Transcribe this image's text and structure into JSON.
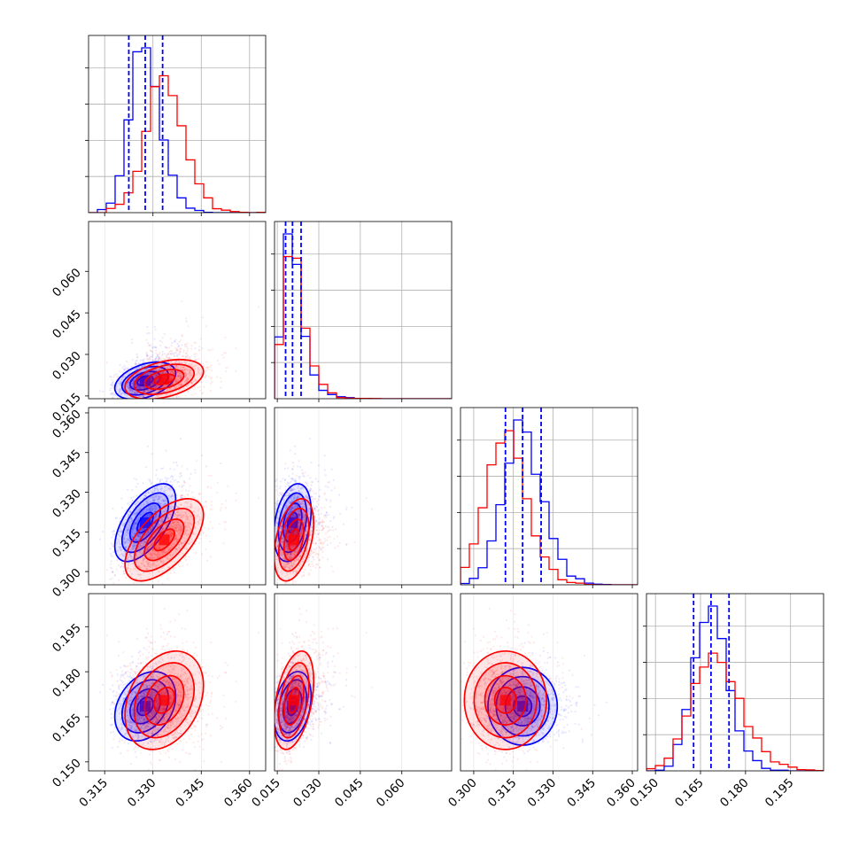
{
  "chart_data": {
    "type": "corner",
    "parameters": [
      {
        "range": [
          0.31,
          0.365
        ],
        "ticks": [
          "0.315",
          "0.330",
          "0.345",
          "0.360"
        ],
        "tick_values": [
          0.315,
          0.33,
          0.345,
          0.36
        ]
      },
      {
        "range": [
          0.014,
          0.078
        ],
        "ticks": [
          "0.015",
          "0.030",
          "0.045",
          "0.060"
        ],
        "tick_values": [
          0.015,
          0.03,
          0.045,
          0.06
        ]
      },
      {
        "range": [
          0.295,
          0.362
        ],
        "ticks": [
          "0.300",
          "0.315",
          "0.330",
          "0.345",
          "0.360"
        ],
        "tick_values": [
          0.3,
          0.315,
          0.33,
          0.345,
          0.36
        ]
      },
      {
        "range": [
          0.147,
          0.206
        ],
        "ticks": [
          "0.150",
          "0.165",
          "0.180",
          "0.195"
        ],
        "tick_values": [
          0.15,
          0.165,
          0.18,
          0.195
        ]
      }
    ],
    "series": [
      {
        "color": "#0000ff",
        "mean": [
          0.3276,
          0.0205,
          0.3185,
          0.1685
        ],
        "sigma": [
          0.0045,
          0.0032,
          0.007,
          0.0055
        ],
        "quantiles": [
          [
            0.3225,
            0.3276,
            0.333
          ],
          [
            0.018,
            0.0205,
            0.0236
          ],
          [
            0.312,
            0.3185,
            0.3255
          ],
          [
            0.1627,
            0.1685,
            0.1745
          ]
        ],
        "corr": [
          [
            1,
            0.4,
            0.6,
            0.3
          ],
          [
            0.4,
            1,
            0.3,
            0.3
          ],
          [
            0.6,
            0.3,
            1,
            0.0
          ],
          [
            0.3,
            0.3,
            0.0,
            1
          ]
        ]
      },
      {
        "color": "#ff0000",
        "mean": [
          0.3335,
          0.021,
          0.312,
          0.1705
        ],
        "sigma": [
          0.0058,
          0.0034,
          0.0074,
          0.0078
        ],
        "corr": [
          [
            1,
            0.4,
            0.6,
            0.3
          ],
          [
            0.4,
            1,
            0.4,
            0.4
          ],
          [
            0.6,
            0.4,
            1,
            0.0
          ],
          [
            0.3,
            0.4,
            0.0,
            1
          ]
        ]
      }
    ],
    "grid": true,
    "show_quantiles_for_series": 0
  }
}
